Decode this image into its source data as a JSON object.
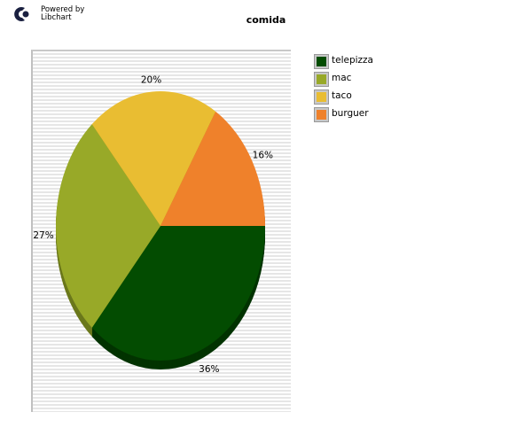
{
  "logo": {
    "line1": "Powered by",
    "line2": "Libchart"
  },
  "chart_data": {
    "type": "pie",
    "title": "comida",
    "categories": [
      "telepizza",
      "mac",
      "taco",
      "burguer"
    ],
    "values": [
      36,
      27,
      20,
      16
    ],
    "labels": [
      "36%",
      "27%",
      "20%",
      "16%"
    ],
    "colors": [
      "#034c01",
      "#98a928",
      "#e9bd32",
      "#ef812b"
    ],
    "shadow_colors": [
      "#023301",
      "#6b781c",
      "#a5861f",
      "#a95a1d"
    ],
    "legend_position": "right"
  }
}
